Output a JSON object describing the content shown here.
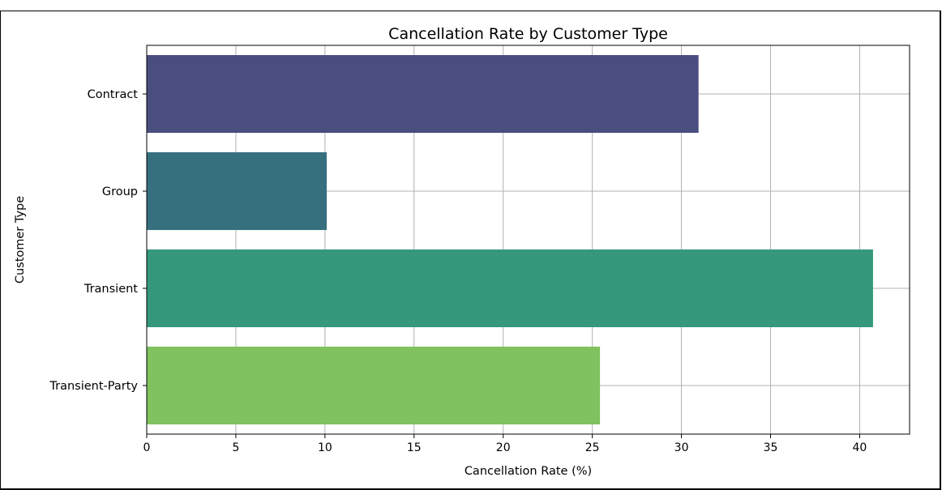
{
  "chart_data": {
    "type": "bar",
    "orientation": "horizontal",
    "title": "Cancellation Rate by Customer Type",
    "xlabel": "Cancellation Rate (%)",
    "ylabel": "Customer Type",
    "categories": [
      "Contract",
      "Group",
      "Transient",
      "Transient-Party"
    ],
    "values": [
      30.96,
      10.1,
      40.75,
      25.43
    ],
    "colors": [
      "#4a4d7f",
      "#36707f",
      "#35987c",
      "#7fc25f"
    ],
    "xlim": [
      0,
      42.8
    ],
    "xticks": [
      0,
      5,
      10,
      15,
      20,
      25,
      30,
      35,
      40
    ],
    "grid": true
  }
}
